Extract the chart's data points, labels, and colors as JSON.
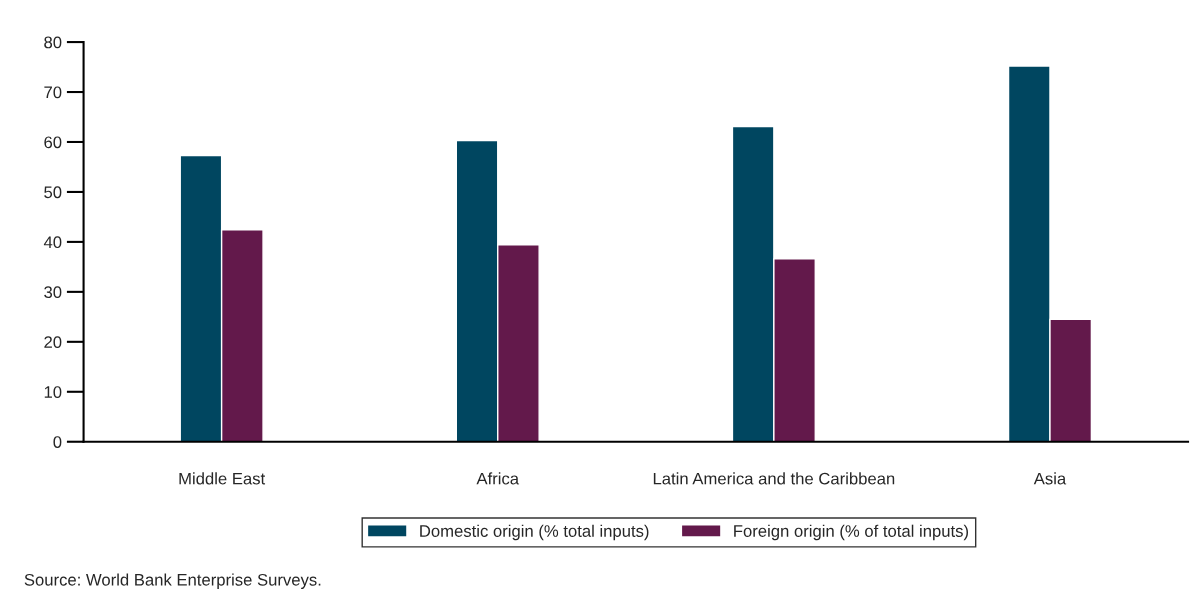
{
  "chart_data": {
    "type": "bar",
    "categories": [
      "Middle East",
      "Africa",
      "Latin America and the Caribbean",
      "Asia"
    ],
    "series": [
      {
        "name": "Domestic origin (% total inputs)",
        "color": "#004660",
        "values": [
          57.3,
          60.3,
          63.1,
          75.2
        ]
      },
      {
        "name": "Foreign origin (% of total inputs)",
        "color": "#63194b",
        "values": [
          42.4,
          39.4,
          36.6,
          24.5
        ]
      }
    ],
    "ylim": [
      0,
      80
    ],
    "yticks": [
      0,
      10,
      20,
      30,
      40,
      50,
      60,
      70,
      80
    ],
    "grid": false,
    "legend": "bottom",
    "annotations": [
      "Source: World Bank Enterprise Surveys."
    ]
  }
}
